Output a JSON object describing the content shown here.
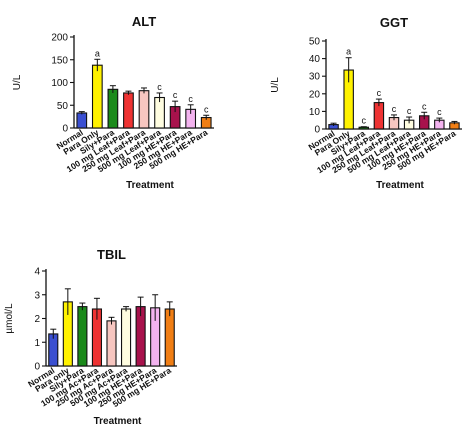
{
  "chart_data": [
    {
      "type": "bar",
      "title": "ALT",
      "xlabel": "Treatment",
      "ylabel": "U/L",
      "ylim": [
        0,
        200
      ],
      "yticks": [
        0,
        50,
        100,
        150,
        200
      ],
      "categories": [
        "Normal",
        "Para Only",
        "Sily+Para",
        "100 mg Leaf+Para",
        "250 mg Leaf+Para",
        "500 mg Leaf+Para",
        "100 mg HE+Para",
        "250 mg HE+Para",
        "500 mg HE+Para"
      ],
      "values": [
        33,
        138,
        85,
        77,
        82,
        67,
        47,
        41,
        23
      ],
      "errors": [
        3,
        13,
        8,
        4,
        6,
        10,
        12,
        10,
        5
      ],
      "annotations": [
        "",
        "a",
        "",
        "",
        "",
        "c",
        "c",
        "c",
        "c"
      ],
      "colors": [
        "#3a4fd1",
        "#fff200",
        "#1a8a1a",
        "#ee3333",
        "#f7c6c0",
        "#fffde0",
        "#a8124c",
        "#f3b3ef",
        "#f07e14"
      ]
    },
    {
      "type": "bar",
      "title": "GGT",
      "xlabel": "Treatment",
      "ylabel": "U/L",
      "ylim": [
        0,
        50
      ],
      "yticks": [
        0,
        10,
        20,
        30,
        40,
        50
      ],
      "categories": [
        "Normal",
        "Para Only",
        "Sily+Para",
        "100 mg Leaf+Para",
        "250 mg Leaf+Para",
        "500 mg Leaf+Para",
        "100 mg HE+Para",
        "250 mg HE+Para",
        "500 mg HE+Para"
      ],
      "values": [
        2.5,
        33.5,
        1,
        15,
        6.5,
        5,
        7.5,
        5,
        3.5
      ],
      "errors": [
        0.8,
        7,
        0.3,
        2,
        1.5,
        1.8,
        2,
        1.2,
        0.8
      ],
      "annotations": [
        "",
        "a",
        "c",
        "c",
        "c",
        "c",
        "c",
        "c",
        ""
      ],
      "colors": [
        "#3a4fd1",
        "#fff200",
        "#1a8a1a",
        "#ee3333",
        "#f7c6c0",
        "#fffde0",
        "#a8124c",
        "#f3b3ef",
        "#f07e14"
      ]
    },
    {
      "type": "bar",
      "title": "TBIL",
      "xlabel": "Treatment",
      "ylabel": "µmol/L",
      "ylim": [
        0,
        4
      ],
      "yticks": [
        0,
        1,
        2,
        3,
        4
      ],
      "categories": [
        "Normal",
        "Para only",
        "Sily+Para",
        "100 mg Ac+Para",
        "250 mg Ac+Para",
        "500 mg Ac+Para",
        "100 mg HE+Para",
        "250 mg HE+Para",
        "500 mg HE+Para"
      ],
      "values": [
        1.35,
        2.7,
        2.5,
        2.4,
        1.9,
        2.4,
        2.5,
        2.45,
        2.4
      ],
      "errors": [
        0.2,
        0.55,
        0.15,
        0.45,
        0.15,
        0.1,
        0.4,
        0.55,
        0.3
      ],
      "annotations": [
        "",
        "",
        "",
        "",
        "",
        "",
        "",
        "",
        ""
      ],
      "colors": [
        "#3a4fd1",
        "#fff200",
        "#1a8a1a",
        "#ee3333",
        "#f7c6c0",
        "#fffde0",
        "#a8124c",
        "#f3b3ef",
        "#f07e14"
      ]
    }
  ]
}
